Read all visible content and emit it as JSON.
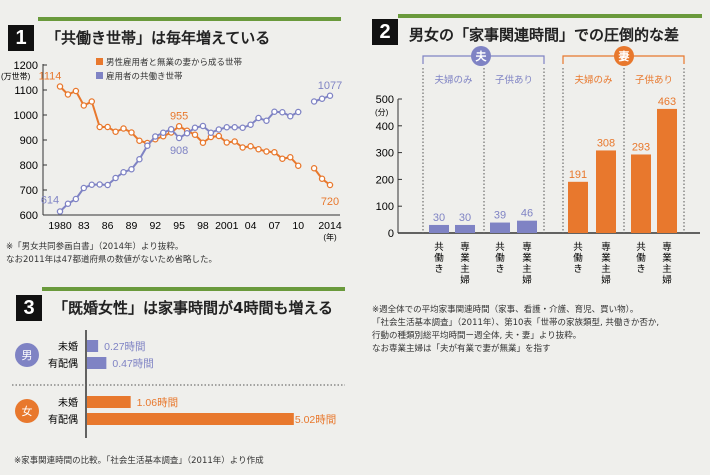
{
  "colors": {
    "orange": "#e8782d",
    "blue": "#7f83c4",
    "green": "#6a9a3c"
  },
  "panel1": {
    "number": "1",
    "title": "「共働き世帯」は毎年増えている",
    "notes": [
      "※「男女共同参画白書」（2014年）より抜粋。",
      "なお2011年は47都道府県の数値がないため省略した。"
    ]
  },
  "panel2": {
    "number": "2",
    "title": "男女の「家事関連時間」での圧倒的な差",
    "notes": [
      "※週全体での平均家事関連時間（家事、看護・介護、育児、買い物）。",
      "「社会生活基本調査」（2011年）、第10表「世帯の家族類型, 共働きか否か,",
      "行動の種類別総平均時間ー週全体, 夫・妻」より抜粋。",
      "なお専業主婦は「夫が有業で妻が無業」を指す"
    ]
  },
  "panel3": {
    "number": "3",
    "title": "「既婚女性」は家事時間が4時間も増える",
    "notes": [
      "※家事関連時間の比較。「社会生活基本調査」（2011年）より作成"
    ]
  },
  "chart_data": [
    {
      "type": "line",
      "ylabel": "(万世帯)",
      "xlabel": "(年)",
      "ylim": [
        600,
        1200
      ],
      "yticks": [
        600,
        700,
        800,
        900,
        1000,
        1100,
        1200
      ],
      "xticks": [
        "1980",
        "83",
        "86",
        "89",
        "92",
        "95",
        "98",
        "2001",
        "04",
        "07",
        "10",
        "2014"
      ],
      "xtick_years": [
        1980,
        1983,
        1986,
        1989,
        1992,
        1995,
        1998,
        2001,
        2004,
        2007,
        2010,
        2014
      ],
      "x": [
        1980,
        1981,
        1982,
        1983,
        1984,
        1985,
        1986,
        1987,
        1988,
        1989,
        1990,
        1991,
        1992,
        1993,
        1994,
        1995,
        1996,
        1997,
        1998,
        1999,
        2000,
        2001,
        2002,
        2003,
        2004,
        2005,
        2006,
        2007,
        2008,
        2009,
        2010,
        2012,
        2013,
        2014
      ],
      "legend_position": "top",
      "series": [
        {
          "name": "男性雇用者と無業の妻から成る世帯",
          "color": "#e8782d",
          "values": [
            1114,
            1082,
            1096,
            1038,
            1054,
            952,
            952,
            933,
            946,
            930,
            897,
            888,
            903,
            915,
            930,
            955,
            937,
            921,
            889,
            912,
            916,
            890,
            894,
            870,
            875,
            863,
            854,
            851,
            825,
            831,
            797,
            787,
            745,
            720
          ],
          "labels": [
            {
              "x": 1980,
              "text": "1114"
            },
            {
              "x": 1995,
              "text": "955"
            },
            {
              "x": 2014,
              "text": "720"
            }
          ]
        },
        {
          "name": "雇用者の共働き世帯",
          "color": "#7f83c4",
          "values": [
            614,
            645,
            664,
            708,
            721,
            722,
            720,
            748,
            771,
            783,
            823,
            877,
            914,
            929,
            943,
            908,
            927,
            949,
            956,
            929,
            942,
            951,
            951,
            949,
            961,
            988,
            977,
            1013,
            1011,
            995,
            1012,
            1054,
            1065,
            1077
          ],
          "labels": [
            {
              "x": 1980,
              "text": "614"
            },
            {
              "x": 1995,
              "text": "908"
            },
            {
              "x": 2014,
              "text": "1077"
            }
          ]
        }
      ]
    },
    {
      "type": "bar",
      "ylabel": "(分)",
      "ylim": [
        0,
        500
      ],
      "yticks": [
        0,
        100,
        200,
        300,
        400,
        500
      ],
      "groups": [
        {
          "label": "夫",
          "color": "#7f83c4",
          "sub": [
            "夫婦のみ",
            "子供あり"
          ]
        },
        {
          "label": "妻",
          "color": "#e8782d",
          "sub": [
            "夫婦のみ",
            "子供あり"
          ]
        }
      ],
      "categories": [
        "共働き",
        "専業主婦",
        "共働き",
        "専業主婦",
        "共働き",
        "専業主婦",
        "共働き",
        "専業主婦"
      ],
      "values": [
        30,
        30,
        39,
        46,
        191,
        308,
        293,
        463
      ]
    },
    {
      "type": "bar",
      "orientation": "horizontal",
      "unit": "時間",
      "groups": [
        {
          "label": "男",
          "color": "#7f83c4",
          "categories": [
            "未婚",
            "有配偶"
          ],
          "values": [
            0.27,
            0.47
          ]
        },
        {
          "label": "女",
          "color": "#e8782d",
          "categories": [
            "未婚",
            "有配偶"
          ],
          "values": [
            1.06,
            5.02
          ]
        }
      ]
    }
  ]
}
